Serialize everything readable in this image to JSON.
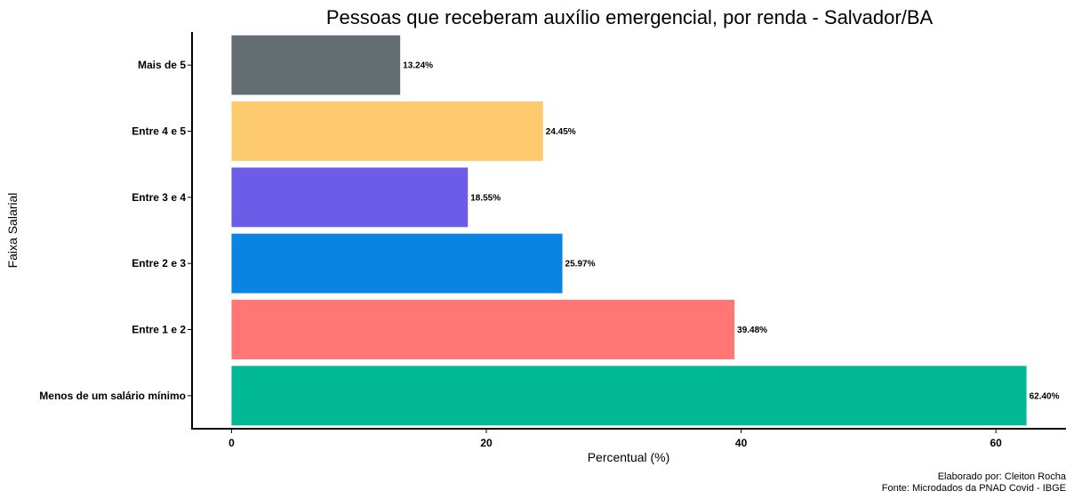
{
  "chart_data": {
    "type": "bar",
    "orientation": "horizontal",
    "title": "Pessoas que receberam auxílio emergencial, por renda - Salvador/BA",
    "xlabel": "Percentual (%)",
    "ylabel": "Faixa Salarial",
    "categories": [
      "Menos de um salário mínimo",
      "Entre 1 e 2",
      "Entre 2 e 3",
      "Entre 3 e 4",
      "Entre 4 e 5",
      "Mais de 5"
    ],
    "values": [
      62.4,
      39.48,
      25.97,
      18.55,
      24.45,
      13.24
    ],
    "data_labels": [
      "62.40%",
      "39.48%",
      "25.97%",
      "18.55%",
      "24.45%",
      "13.24%"
    ],
    "colors": [
      "#00B894",
      "#FF7675",
      "#0984E3",
      "#6C5CE7",
      "#FDCB6E",
      "#636E72"
    ],
    "xlim": [
      -3.1,
      65.5
    ],
    "xticks": [
      0,
      20,
      40,
      60
    ],
    "xtick_labels": [
      "0",
      "20",
      "40",
      "60"
    ],
    "grid": false,
    "legend": "none",
    "caption": [
      "Elaborado por: Cleiton Rocha",
      "Fonte: Microdados da PNAD Covid - IBGE"
    ]
  }
}
